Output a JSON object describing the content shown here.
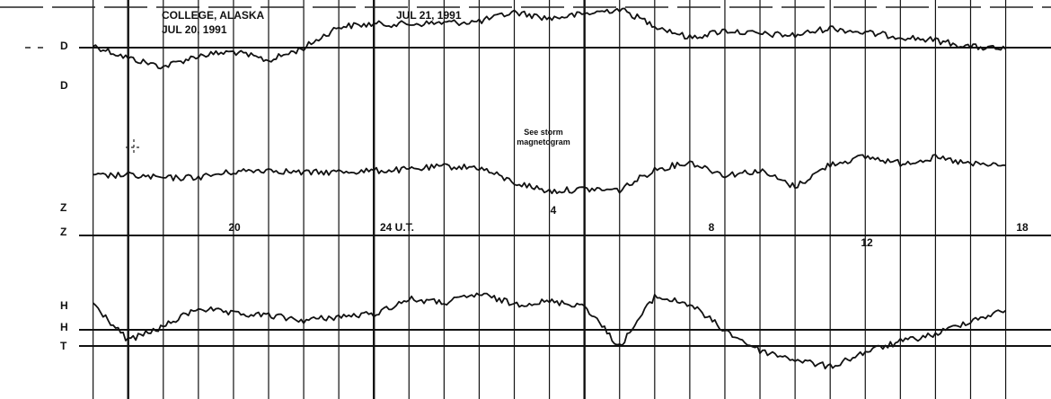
{
  "chart_data": {
    "type": "line",
    "station_header": [
      "COLLEGE, ALASKA",
      "JUL 20, 1991"
    ],
    "date_header": "JUL 21, 1991",
    "annotation": [
      "See storm",
      "magnetogram"
    ],
    "baseline_labels": [
      {
        "label": "D"
      },
      {
        "label": "D"
      },
      {
        "label": "Z"
      },
      {
        "label": "Z"
      },
      {
        "label": "H"
      },
      {
        "label": "H"
      },
      {
        "label": "T"
      }
    ],
    "time_ticks": [
      {
        "ut_hour": 20,
        "label": "20"
      },
      {
        "ut_hour": 24,
        "label": "24 U.T."
      },
      {
        "ut_hour": 28,
        "label": "4"
      },
      {
        "ut_hour": 32,
        "label": "8"
      },
      {
        "ut_hour": 36,
        "label": "12"
      },
      {
        "ut_hour": 42,
        "label": "18"
      }
    ],
    "x_range_ut_hours": [
      15.6,
      42.6
    ],
    "grid": "vertical hour lines",
    "series": [
      {
        "component": "D",
        "ut_hours": [
          16,
          17,
          18,
          19,
          20,
          21,
          22,
          23,
          24,
          25,
          26,
          27,
          28,
          29,
          30,
          31,
          32,
          33,
          34,
          35,
          36,
          37,
          38,
          39,
          40,
          41,
          42
        ],
        "rel_level": [
          0.62,
          0.42,
          0.28,
          0.46,
          0.52,
          0.38,
          0.58,
          0.92,
          0.96,
          0.96,
          0.98,
          1.0,
          1.15,
          1.05,
          1.12,
          1.2,
          0.94,
          0.74,
          0.86,
          0.8,
          0.78,
          0.9,
          0.82,
          0.76,
          0.7,
          0.6,
          0.56
        ]
      },
      {
        "component": "Z",
        "ut_hours": [
          16,
          17,
          18,
          19,
          20,
          21,
          22,
          23,
          24,
          25,
          26,
          27,
          28,
          29,
          30,
          31,
          32,
          33,
          34,
          35,
          36,
          37,
          38,
          39,
          40,
          41,
          42
        ],
        "rel_level": [
          0.6,
          0.62,
          0.56,
          0.58,
          0.68,
          0.72,
          0.66,
          0.68,
          0.7,
          0.72,
          0.78,
          0.76,
          0.48,
          0.32,
          0.36,
          0.34,
          0.72,
          0.86,
          0.62,
          0.7,
          0.4,
          0.82,
          0.96,
          0.84,
          0.94,
          0.82,
          0.8
        ]
      },
      {
        "component": "H",
        "ut_hours": [
          16,
          17,
          18,
          19,
          20,
          21,
          22,
          23,
          24,
          25,
          26,
          27,
          28,
          29,
          30,
          31,
          32,
          33,
          34,
          35,
          36,
          37,
          38,
          39,
          40,
          41,
          42
        ],
        "rel_level": [
          0.88,
          0.3,
          0.52,
          0.82,
          0.72,
          0.7,
          0.62,
          0.68,
          0.72,
          0.96,
          0.9,
          1.04,
          0.88,
          0.92,
          0.86,
          0.2,
          1.0,
          0.88,
          0.46,
          0.14,
          0.0,
          -0.12,
          0.12,
          0.28,
          0.4,
          0.62,
          0.78
        ]
      }
    ]
  }
}
